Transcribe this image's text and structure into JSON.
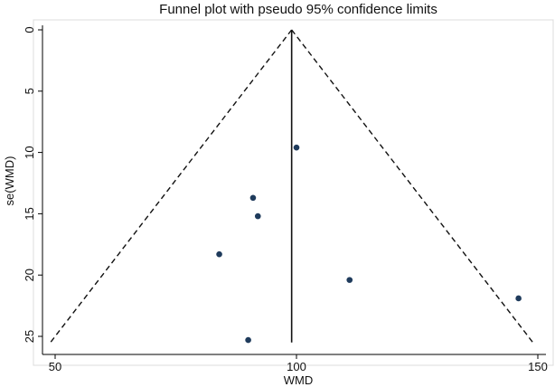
{
  "chart_data": {
    "type": "scatter",
    "title": "Funnel plot with pseudo 95% confidence limits",
    "xlabel": "WMD",
    "ylabel": "se(WMD)",
    "xlim": [
      48,
      152
    ],
    "ylim": [
      0,
      25.5
    ],
    "y_reversed": true,
    "grid": false,
    "xticks": [
      50,
      100,
      150
    ],
    "yticks": [
      0,
      5,
      10,
      15,
      20,
      25
    ],
    "pooled_estimate": 99,
    "confidence_z": 1.96,
    "points": [
      {
        "x": 100,
        "y": 9.6
      },
      {
        "x": 91,
        "y": 13.7
      },
      {
        "x": 92,
        "y": 15.2
      },
      {
        "x": 84,
        "y": 18.3
      },
      {
        "x": 111,
        "y": 20.4
      },
      {
        "x": 146,
        "y": 21.9
      },
      {
        "x": 90,
        "y": 25.3
      }
    ],
    "colors": {
      "point": "#1f3b5c",
      "axis": "#000000",
      "frame": "#dcdcdc",
      "grid_bg": "#ffffff"
    }
  }
}
